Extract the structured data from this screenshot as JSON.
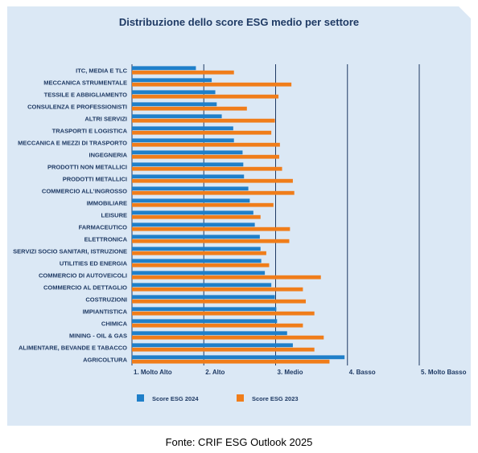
{
  "chart_data": {
    "type": "bar",
    "orientation": "horizontal",
    "title": "Distribuzione dello score ESG medio per settore",
    "categories": [
      "ITC, MEDIA E TLC",
      "MECCANICA STRUMENTALE",
      "TESSILE E ABBIGLIAMENTO",
      "CONSULENZA E PROFESSIONISTI",
      "ALTRI SERVIZI",
      "TRASPORTI E LOGISTICA",
      "MECCANICA E MEZZI DI TRASPORTO",
      "INGEGNERIA",
      "PRODOTTI NON METALLICI",
      "PRODOTTI METALLICI",
      "COMMERCIO ALL'INGROSSO",
      "IMMOBILIARE",
      "LEISURE",
      "FARMACEUTICO",
      "ELETTRONICA",
      "SERVIZI SOCIO SANITARI, ISTRUZIONE",
      "UTILITIES ED ENERGIA",
      "COMMERCIO DI AUTOVEICOLI",
      "COMMERCIO AL DETTAGLIO",
      "COSTRUZIONI",
      "IMPIANTISTICA",
      "CHIMICA",
      "MINING - OIL & GAS",
      "ALIMENTARE, BEVANDE E TABACCO",
      "AGRICOLTURA"
    ],
    "series": [
      {
        "name": "Score ESG 2024",
        "color": "#1f7fc9",
        "values": [
          1.89,
          2.11,
          2.16,
          2.18,
          2.25,
          2.41,
          2.42,
          2.54,
          2.55,
          2.56,
          2.62,
          2.64,
          2.69,
          2.71,
          2.78,
          2.79,
          2.8,
          2.85,
          2.94,
          2.99,
          3.01,
          3.02,
          3.16,
          3.24,
          3.96
        ]
      },
      {
        "name": "Score ESG 2023",
        "color": "#f07d1a",
        "values": [
          2.42,
          3.22,
          3.04,
          2.6,
          2.99,
          2.94,
          3.06,
          3.05,
          3.09,
          3.24,
          3.26,
          2.97,
          2.79,
          3.2,
          3.19,
          2.87,
          2.91,
          3.63,
          3.38,
          3.42,
          3.54,
          3.38,
          3.67,
          3.54,
          3.75
        ]
      }
    ],
    "x_ticks": [
      {
        "value": 1,
        "label": "1. Molto Alto"
      },
      {
        "value": 2,
        "label": "2. Alto"
      },
      {
        "value": 3,
        "label": "3. Medio"
      },
      {
        "value": 4,
        "label": "4. Basso"
      },
      {
        "value": 5,
        "label": "5. Molto Basso"
      }
    ],
    "xlim": [
      1,
      5
    ],
    "grid": true,
    "legend_position": "bottom"
  },
  "colors": {
    "panel_background": "#dbe8f5",
    "gridline": "#1f3a64",
    "text": "#1f3a64"
  },
  "source": "Fonte: CRIF ESG Outlook 2025"
}
